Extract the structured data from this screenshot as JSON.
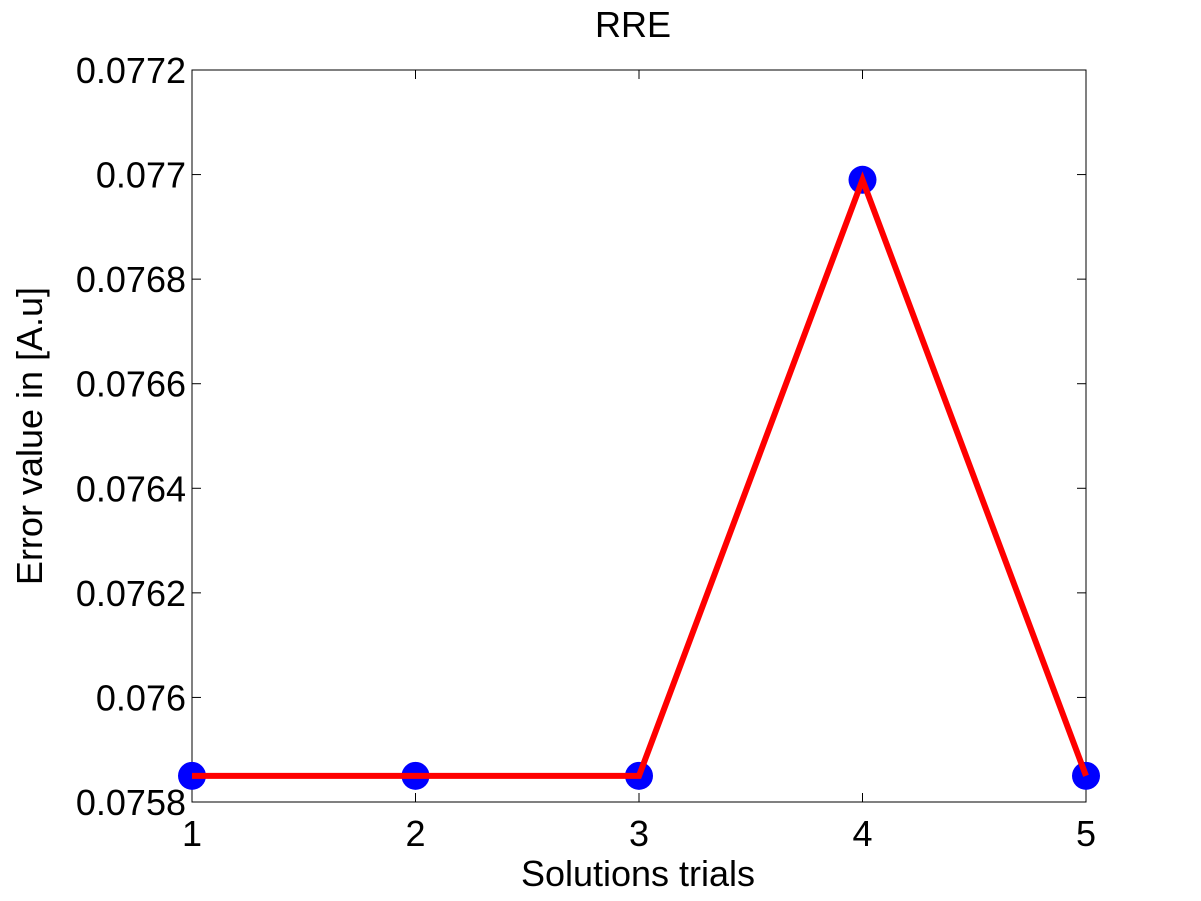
{
  "chart_data": {
    "type": "line",
    "title": "RRE",
    "xlabel": "Solutions trials",
    "ylabel": "Error value in [A.u]",
    "x": [
      1,
      2,
      3,
      4,
      5
    ],
    "series": [
      {
        "values": [
          0.07585,
          0.07585,
          0.07585,
          0.07699,
          0.07585
        ],
        "line_color": "#ff0000",
        "marker_color": "#0000ff",
        "marker": "circle"
      }
    ],
    "xlim": [
      1,
      5
    ],
    "ylim": [
      0.0758,
      0.0772
    ],
    "xticks": [
      "1",
      "2",
      "3",
      "4",
      "5"
    ],
    "yticks": [
      "0.0758",
      "0.076",
      "0.0762",
      "0.0764",
      "0.0766",
      "0.0768",
      "0.077",
      "0.0772"
    ],
    "grid": false,
    "legend": "none"
  }
}
